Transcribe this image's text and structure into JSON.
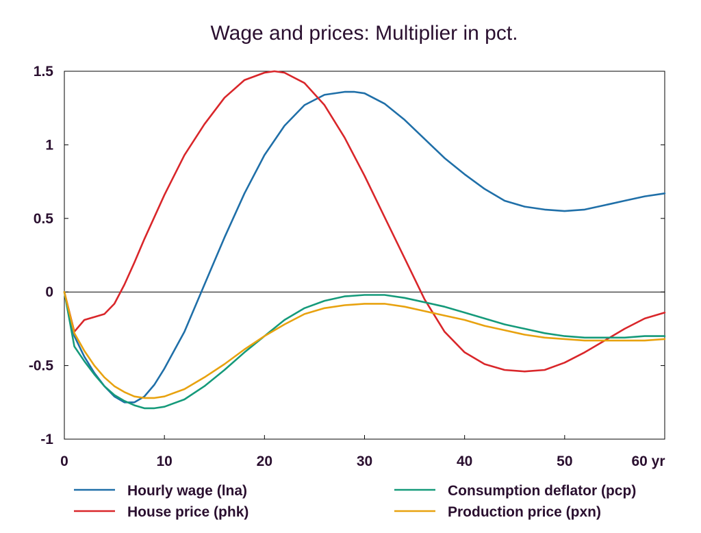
{
  "chart_data": {
    "type": "line",
    "title": "Wage and prices: Multiplier in pct.",
    "xlabel": "",
    "ylabel": "",
    "xlim": [
      0,
      60
    ],
    "ylim": [
      -1,
      1.5
    ],
    "x_ticks": [
      0,
      10,
      20,
      30,
      40,
      50,
      60
    ],
    "x_tick_labels": [
      "0",
      "10",
      "20",
      "30",
      "40",
      "50",
      "60 yr"
    ],
    "y_ticks": [
      1.5,
      1,
      0.5,
      0,
      -0.5,
      -1
    ],
    "y_tick_labels": [
      "1.5",
      "1",
      "0.5",
      "0",
      "-0.5",
      "-1"
    ],
    "zero_line": true,
    "grid": false,
    "legend_position": "bottom",
    "series": [
      {
        "name": "Hourly wage (lna)",
        "color": "#1f6fa8",
        "x": [
          0,
          1,
          2,
          3,
          4,
          5,
          6,
          7,
          8,
          9,
          10,
          12,
          14,
          16,
          18,
          20,
          22,
          24,
          26,
          28,
          29,
          30,
          32,
          34,
          36,
          38,
          40,
          42,
          44,
          46,
          48,
          50,
          52,
          54,
          56,
          58,
          60
        ],
        "y": [
          0,
          -0.3,
          -0.44,
          -0.55,
          -0.64,
          -0.71,
          -0.75,
          -0.75,
          -0.71,
          -0.63,
          -0.52,
          -0.27,
          0.05,
          0.37,
          0.67,
          0.93,
          1.13,
          1.27,
          1.34,
          1.36,
          1.36,
          1.35,
          1.28,
          1.17,
          1.04,
          0.91,
          0.8,
          0.7,
          0.62,
          0.58,
          0.56,
          0.55,
          0.56,
          0.59,
          0.62,
          0.65,
          0.67
        ]
      },
      {
        "name": "House price (phk)",
        "color": "#d9262a",
        "x": [
          0,
          1,
          2,
          3,
          4,
          5,
          6,
          7,
          8,
          10,
          12,
          14,
          16,
          18,
          20,
          21,
          22,
          24,
          26,
          28,
          30,
          32,
          34,
          36,
          38,
          40,
          42,
          44,
          46,
          48,
          50,
          52,
          54,
          56,
          58,
          60
        ],
        "y": [
          0,
          -0.27,
          -0.19,
          -0.17,
          -0.15,
          -0.08,
          0.05,
          0.2,
          0.36,
          0.66,
          0.93,
          1.14,
          1.32,
          1.44,
          1.49,
          1.5,
          1.49,
          1.42,
          1.27,
          1.05,
          0.79,
          0.51,
          0.23,
          -0.05,
          -0.27,
          -0.41,
          -0.49,
          -0.53,
          -0.54,
          -0.53,
          -0.48,
          -0.41,
          -0.33,
          -0.25,
          -0.18,
          -0.14
        ]
      },
      {
        "name": "Consumption deflator (pcp)",
        "color": "#159a7a",
        "x": [
          0,
          1,
          2,
          3,
          4,
          5,
          6,
          7,
          8,
          9,
          10,
          12,
          14,
          16,
          18,
          20,
          22,
          24,
          26,
          28,
          30,
          32,
          34,
          36,
          38,
          40,
          42,
          44,
          46,
          48,
          50,
          52,
          54,
          56,
          58,
          60
        ],
        "y": [
          0,
          -0.37,
          -0.47,
          -0.56,
          -0.64,
          -0.7,
          -0.74,
          -0.77,
          -0.79,
          -0.79,
          -0.78,
          -0.73,
          -0.64,
          -0.53,
          -0.41,
          -0.3,
          -0.19,
          -0.11,
          -0.06,
          -0.03,
          -0.02,
          -0.02,
          -0.04,
          -0.07,
          -0.1,
          -0.14,
          -0.18,
          -0.22,
          -0.25,
          -0.28,
          -0.3,
          -0.31,
          -0.31,
          -0.31,
          -0.3,
          -0.3
        ]
      },
      {
        "name": "Production price (pxn)",
        "color": "#e8a20f",
        "x": [
          0,
          1,
          2,
          3,
          4,
          5,
          6,
          7,
          8,
          9,
          10,
          12,
          14,
          16,
          18,
          20,
          22,
          24,
          26,
          28,
          30,
          32,
          34,
          36,
          38,
          40,
          42,
          44,
          46,
          48,
          50,
          52,
          54,
          56,
          58,
          60
        ],
        "y": [
          0,
          -0.28,
          -0.4,
          -0.5,
          -0.58,
          -0.64,
          -0.68,
          -0.71,
          -0.72,
          -0.72,
          -0.71,
          -0.66,
          -0.58,
          -0.49,
          -0.39,
          -0.3,
          -0.22,
          -0.15,
          -0.11,
          -0.09,
          -0.08,
          -0.08,
          -0.1,
          -0.13,
          -0.16,
          -0.19,
          -0.23,
          -0.26,
          -0.29,
          -0.31,
          -0.32,
          -0.33,
          -0.33,
          -0.33,
          -0.33,
          -0.32
        ]
      }
    ]
  }
}
